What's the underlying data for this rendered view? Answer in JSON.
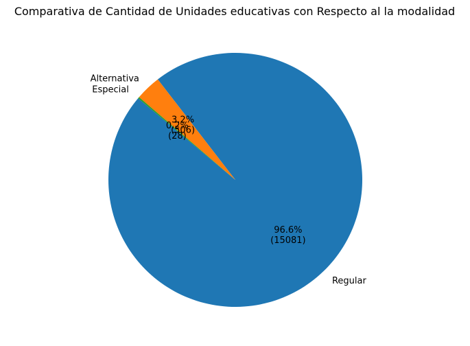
{
  "chart_data": {
    "type": "pie",
    "title": "Comparativa de Cantidad de Unidades educativas con Respecto al la modalidad",
    "start_angle_deg": 140,
    "direction": "counterclockwise",
    "slices": [
      {
        "label": "Regular",
        "value": 15081,
        "pct_label": "96.6%",
        "count_label": "(15081)",
        "color": "#1f77b4"
      },
      {
        "label": "Alternativa",
        "value": 506,
        "pct_label": "3.2%",
        "count_label": "(506)",
        "color": "#ff7f0e"
      },
      {
        "label": "Especial",
        "value": 28,
        "pct_label": "0.2%",
        "count_label": "(28)",
        "color": "#2ca02c"
      }
    ]
  }
}
